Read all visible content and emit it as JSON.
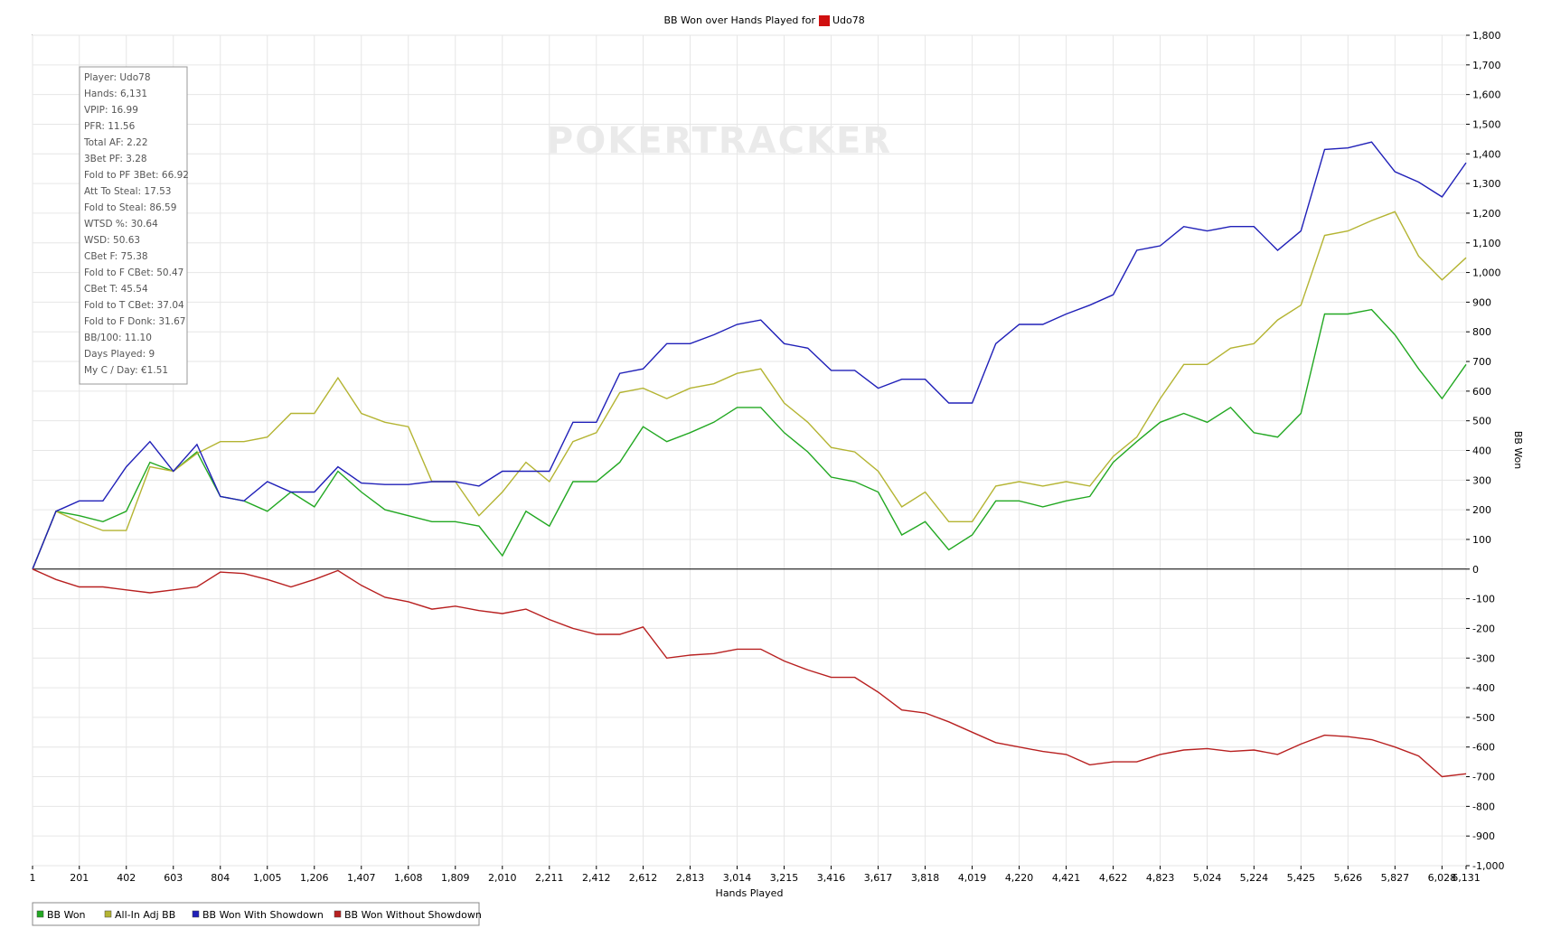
{
  "chart_data": {
    "type": "line",
    "title": "BB Won over Hands Played for",
    "player": "Udo78",
    "watermark": "POKERTRACKER",
    "x_label": "Hands Played",
    "y_label": "BB Won",
    "grid": true,
    "legend": "bottom",
    "stats": [
      "Player: Udo78",
      "Hands: 6,131",
      "VPIP: 16.99",
      "PFR: 11.56",
      "Total AF: 2.22",
      "3Bet PF: 3.28",
      "Fold to PF 3Bet: 66.92",
      "Att To Steal: 17.53",
      "Fold to Steal: 86.59",
      "WTSD %: 30.64",
      "WSD: 50.63",
      "CBet F: 75.38",
      "Fold to F CBet: 50.47",
      "CBet T: 45.54",
      "Fold to T CBet: 37.04",
      "Fold to F Donk: 31.67",
      "BB/100: 11.10",
      "Days Played: 9",
      "My C / Day: €1.51"
    ],
    "x": [
      1,
      101,
      201,
      302,
      402,
      503,
      603,
      704,
      804,
      905,
      1005,
      1106,
      1206,
      1307,
      1407,
      1508,
      1608,
      1709,
      1809,
      1910,
      2010,
      2111,
      2211,
      2312,
      2412,
      2512,
      2612,
      2713,
      2813,
      2914,
      3014,
      3115,
      3215,
      3316,
      3416,
      3517,
      3617,
      3718,
      3818,
      3919,
      4019,
      4120,
      4220,
      4321,
      4421,
      4522,
      4622,
      4723,
      4823,
      4924,
      5024,
      5124,
      5224,
      5325,
      5425,
      5526,
      5626,
      5727,
      5827,
      5928,
      6028,
      6131
    ],
    "series": [
      {
        "name": "BB Won",
        "color": "#22a822",
        "values": [
          0,
          195,
          180,
          160,
          195,
          360,
          330,
          395,
          245,
          230,
          195,
          260,
          210,
          330,
          260,
          200,
          180,
          160,
          160,
          145,
          45,
          195,
          145,
          295,
          295,
          360,
          480,
          430,
          460,
          495,
          545,
          545,
          460,
          395,
          310,
          295,
          260,
          115,
          160,
          65,
          115,
          230,
          230,
          210,
          230,
          245,
          360,
          430,
          495,
          525,
          495,
          545,
          460,
          445,
          525,
          860,
          860,
          875,
          790,
          675,
          575,
          690
        ]
      },
      {
        "name": "All-In Adj BB",
        "color": "#b4b432",
        "values": [
          0,
          195,
          160,
          130,
          130,
          345,
          330,
          390,
          430,
          430,
          445,
          525,
          525,
          645,
          525,
          495,
          480,
          295,
          295,
          180,
          260,
          360,
          295,
          430,
          460,
          595,
          610,
          575,
          610,
          625,
          660,
          675,
          560,
          495,
          410,
          395,
          330,
          210,
          260,
          160,
          160,
          280,
          295,
          280,
          295,
          280,
          380,
          445,
          575,
          690,
          690,
          745,
          760,
          840,
          890,
          1125,
          1140,
          1175,
          1205,
          1055,
          975,
          1050
        ]
      },
      {
        "name": "BB Won With Showdown",
        "color": "#2020b8",
        "values": [
          0,
          195,
          230,
          230,
          345,
          430,
          330,
          420,
          245,
          230,
          295,
          260,
          260,
          345,
          290,
          285,
          285,
          295,
          295,
          280,
          330,
          330,
          330,
          495,
          495,
          660,
          675,
          760,
          760,
          790,
          825,
          840,
          760,
          745,
          670,
          670,
          610,
          640,
          640,
          560,
          560,
          760,
          825,
          825,
          860,
          890,
          925,
          1075,
          1090,
          1155,
          1140,
          1155,
          1155,
          1075,
          1140,
          1415,
          1420,
          1440,
          1340,
          1305,
          1255,
          1370
        ]
      },
      {
        "name": "BB Won Without Showdown",
        "color": "#b82020",
        "values": [
          0,
          -35,
          -60,
          -60,
          -70,
          -80,
          -70,
          -60,
          -10,
          -15,
          -35,
          -60,
          -35,
          -5,
          -55,
          -95,
          -110,
          -135,
          -125,
          -140,
          -150,
          -135,
          -170,
          -200,
          -220,
          -220,
          -195,
          -300,
          -290,
          -285,
          -270,
          -270,
          -310,
          -340,
          -365,
          -365,
          -415,
          -475,
          -485,
          -515,
          -550,
          -585,
          -600,
          -615,
          -625,
          -660,
          -650,
          -650,
          -625,
          -610,
          -605,
          -615,
          -610,
          -625,
          -590,
          -560,
          -565,
          -575,
          -600,
          -630,
          -700,
          -690
        ]
      }
    ],
    "xlim": [
      1,
      6131
    ],
    "xticks": [
      1,
      201,
      402,
      603,
      804,
      {
        "value": 1005,
        "label": "1,005"
      },
      {
        "value": 1206,
        "label": "1,206"
      },
      {
        "value": 1407,
        "label": "1,407"
      },
      {
        "value": 1608,
        "label": "1,608"
      },
      {
        "value": 1809,
        "label": "1,809"
      },
      {
        "value": 2010,
        "label": "2,010"
      },
      {
        "value": 2211,
        "label": "2,211"
      },
      {
        "value": 2412,
        "label": "2,412"
      },
      {
        "value": 2612,
        "label": "2,612"
      },
      {
        "value": 2813,
        "label": "2,813"
      },
      {
        "value": 3014,
        "label": "3,014"
      },
      {
        "value": 3215,
        "label": "3,215"
      },
      {
        "value": 3416,
        "label": "3,416"
      },
      {
        "value": 3617,
        "label": "3,617"
      },
      {
        "value": 3818,
        "label": "3,818"
      },
      {
        "value": 4019,
        "label": "4,019"
      },
      {
        "value": 4220,
        "label": "4,220"
      },
      {
        "value": 4421,
        "label": "4,421"
      },
      {
        "value": 4622,
        "label": "4,622"
      },
      {
        "value": 4823,
        "label": "4,823"
      },
      {
        "value": 5024,
        "label": "5,024"
      },
      {
        "value": 5224,
        "label": "5,224"
      },
      {
        "value": 5425,
        "label": "5,425"
      },
      {
        "value": 5626,
        "label": "5,626"
      },
      {
        "value": 5827,
        "label": "5,827"
      },
      {
        "value": 6028,
        "label": "6,028"
      },
      {
        "value": 6131,
        "label": "6,131"
      }
    ],
    "ylim": [
      -1000,
      1800
    ],
    "yticks": [
      {
        "value": -1000,
        "label": "-1,000"
      },
      -900,
      -800,
      -700,
      -600,
      -500,
      -400,
      -300,
      -200,
      -100,
      0,
      100,
      200,
      300,
      400,
      500,
      600,
      700,
      800,
      900,
      {
        "value": 1000,
        "label": "1,000"
      },
      {
        "value": 1100,
        "label": "1,100"
      },
      {
        "value": 1200,
        "label": "1,200"
      },
      {
        "value": 1300,
        "label": "1,300"
      },
      {
        "value": 1400,
        "label": "1,400"
      },
      {
        "value": 1500,
        "label": "1,500"
      },
      {
        "value": 1600,
        "label": "1,600"
      },
      {
        "value": 1700,
        "label": "1,700"
      },
      {
        "value": 1800,
        "label": "1,800"
      }
    ]
  }
}
